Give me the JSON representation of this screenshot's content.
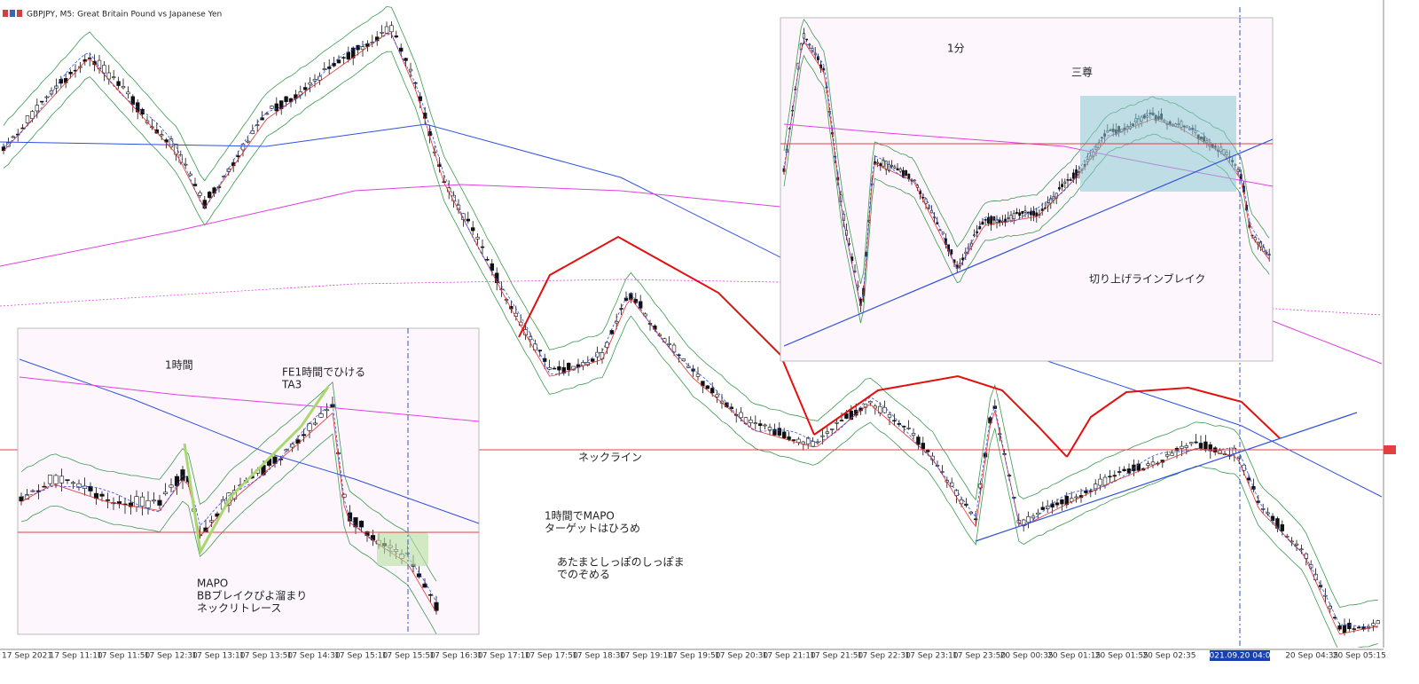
{
  "window": {
    "title": "GBPJPY, M5:  Great Britain Pound vs Japanese Yen"
  },
  "x_axis": {
    "labels": [
      "17 Sep 2021",
      "17 Sep 11:10",
      "17 Sep 11:50",
      "17 Sep 12:30",
      "17 Sep 13:10",
      "17 Sep 13:50",
      "17 Sep 14:30",
      "17 Sep 15:10",
      "17 Sep 15:50",
      "17 Sep 16:30",
      "17 Sep 17:10",
      "17 Sep 17:50",
      "17 Sep 18:30",
      "17 Sep 19:10",
      "17 Sep 19:50",
      "17 Sep 20:30",
      "17 Sep 21:10",
      "17 Sep 21:50",
      "17 Sep 22:30",
      "17 Sep 23:10",
      "17 Sep 23:50",
      "20 Sep 00:35",
      "20 Sep 01:15",
      "20 Sep 01:55",
      "20 Sep 02:35",
      "20 Sep 04:35",
      "20 Sep 05:15"
    ],
    "cursor_time": "2021.09.20 04:00"
  },
  "annotations": {
    "neckline": "ネックライン",
    "main_note_1": [
      "1時間でMAPO",
      "ターゲットはひろめ"
    ],
    "main_note_2": [
      "あたまとしっぽのしっぽま",
      "でのぞめる"
    ],
    "inset_1min": {
      "title": "1分",
      "pattern": "三尊",
      "note": "切り上げラインブレイク"
    },
    "inset_1h": {
      "title": "1時間",
      "note_top": [
        "FE1時間でひける",
        "TA3"
      ],
      "note_bottom": [
        "MAPO",
        "BBブレイクぴよ溜まり",
        "ネックリトレース"
      ]
    }
  }
}
